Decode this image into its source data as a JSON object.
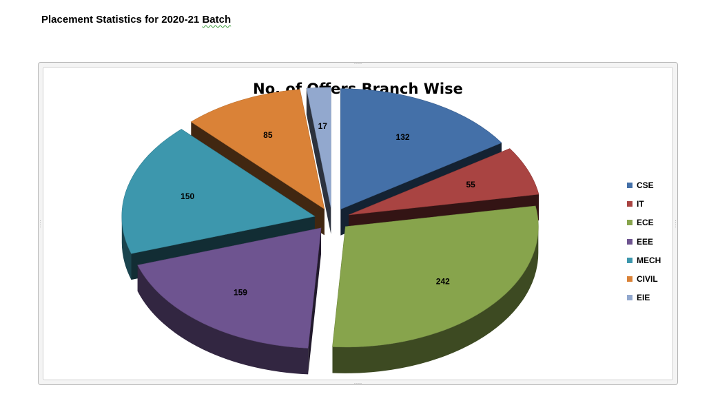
{
  "page": {
    "heading_main": "Placement Statistics for 2020-21 ",
    "heading_flagged": "Batch"
  },
  "chart_data": {
    "type": "pie",
    "title": "No. of Offers Branch Wise",
    "legend_position": "right",
    "exploded": true,
    "style": "3d",
    "slices": [
      {
        "label": "CSE",
        "value": 132,
        "color": "#4470A8"
      },
      {
        "label": "IT",
        "value": 55,
        "color": "#A94442"
      },
      {
        "label": "ECE",
        "value": 242,
        "color": "#87A44C"
      },
      {
        "label": "EEE",
        "value": 159,
        "color": "#6E5490"
      },
      {
        "label": "MECH",
        "value": 150,
        "color": "#3D97AD"
      },
      {
        "label": "CIVIL",
        "value": 85,
        "color": "#DA8237"
      },
      {
        "label": "EIE",
        "value": 17,
        "color": "#92A8CE"
      }
    ]
  }
}
